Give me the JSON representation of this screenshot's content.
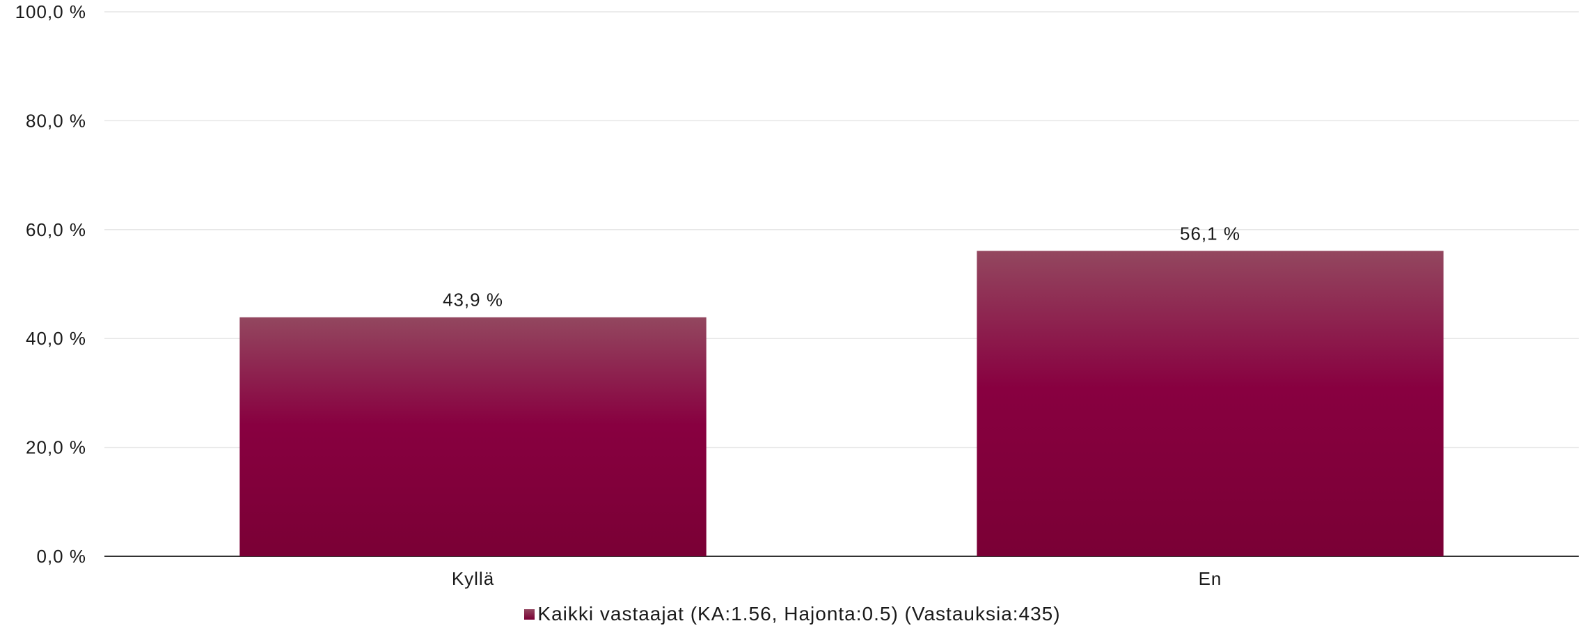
{
  "chart_data": {
    "type": "bar",
    "categories": [
      "Kyllä",
      "En"
    ],
    "series": [
      {
        "name": "Kaikki vastaajat (KA:1.56, Hajonta:0.5) (Vastauksia:435)",
        "values": [
          43.9,
          56.1
        ],
        "value_labels": [
          "43,9 %",
          "56,1 %"
        ]
      }
    ],
    "ylim": [
      0,
      100
    ],
    "yticks": [
      0,
      20,
      40,
      60,
      80,
      100
    ],
    "ytick_labels": [
      "0,0 %",
      "20,0 %",
      "40,0 %",
      "60,0 %",
      "80,0 %",
      "100,0 %"
    ],
    "grid": true,
    "legend_position": "bottom",
    "colors": {
      "bar_top": "#93475f",
      "bar_mid": "#880040",
      "bar_bottom": "#7a0035",
      "grid": "#e6e6e6",
      "axis": "#333333"
    }
  }
}
